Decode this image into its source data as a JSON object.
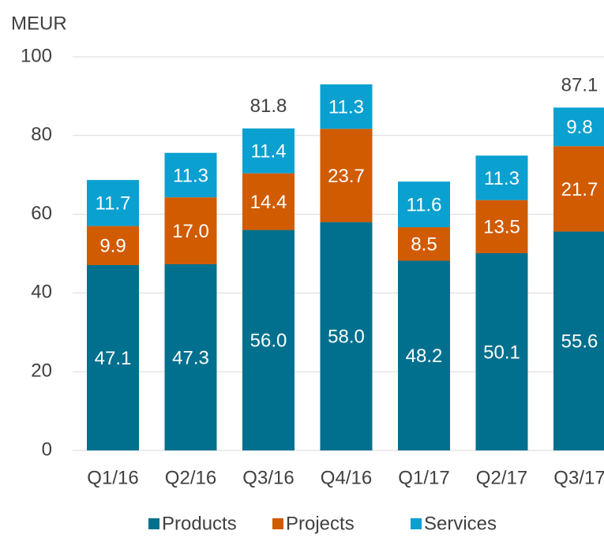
{
  "chart_data": {
    "type": "bar",
    "stacked": true,
    "y_axis_label": "MEUR",
    "categories": [
      "Q1/16",
      "Q2/16",
      "Q3/16",
      "Q4/16",
      "Q1/17",
      "Q2/17",
      "Q3/17"
    ],
    "series": [
      {
        "name": "Products",
        "color": "#00708e",
        "values": [
          47.1,
          47.3,
          56.0,
          58.0,
          48.2,
          50.1,
          55.6
        ],
        "value_labels": [
          "47.1",
          "47.3",
          "56.0",
          "58.0",
          "48.2",
          "50.1",
          "55.6"
        ]
      },
      {
        "name": "Projects",
        "color": "#d15b00",
        "values": [
          9.9,
          17.0,
          14.4,
          23.7,
          8.5,
          13.5,
          21.7
        ],
        "value_labels": [
          "9.9",
          "17.0",
          "14.4",
          "23.7",
          "8.5",
          "13.5",
          "21.7"
        ]
      },
      {
        "name": "Services",
        "color": "#0aa0d0",
        "values": [
          11.7,
          11.3,
          11.4,
          11.3,
          11.6,
          11.3,
          9.8
        ],
        "value_labels": [
          "11.7",
          "11.3",
          "11.4",
          "11.3",
          "11.6",
          "11.3",
          "9.8"
        ]
      }
    ],
    "totals": [
      null,
      null,
      81.8,
      null,
      null,
      null,
      87.1
    ],
    "ylim": [
      0,
      100
    ],
    "yticks": [
      0,
      20,
      40,
      60,
      80,
      100
    ],
    "grid": true,
    "legend": "bottom"
  }
}
